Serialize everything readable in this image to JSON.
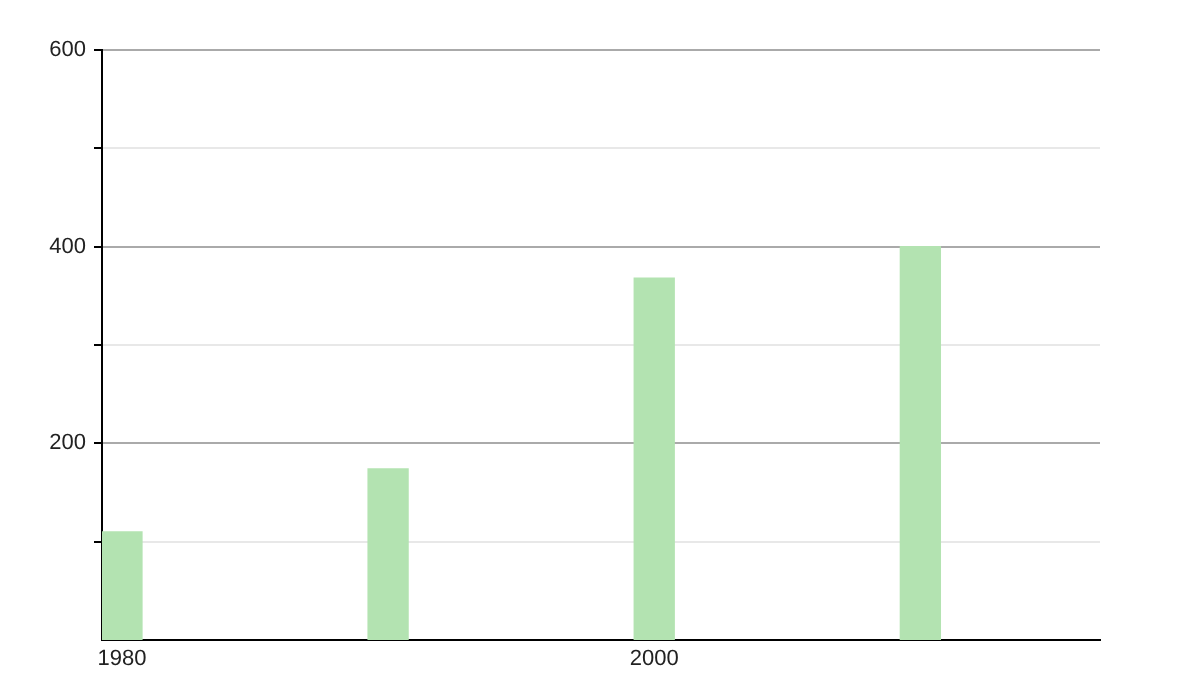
{
  "chart_data": {
    "type": "bar",
    "x": [
      1980,
      1990,
      2000,
      2010
    ],
    "values": [
      110,
      174,
      368,
      400
    ],
    "color": "#b3e3b1",
    "xlim": [
      1979.25,
      2016.75
    ],
    "xticks": [
      1980,
      2000
    ],
    "ylim": [
      0,
      600
    ],
    "yticks": [
      {
        "value": 100,
        "label": null
      },
      200,
      {
        "value": 300,
        "label": null
      },
      400,
      {
        "value": 500,
        "label": null
      },
      600
    ],
    "grid": "y"
  }
}
